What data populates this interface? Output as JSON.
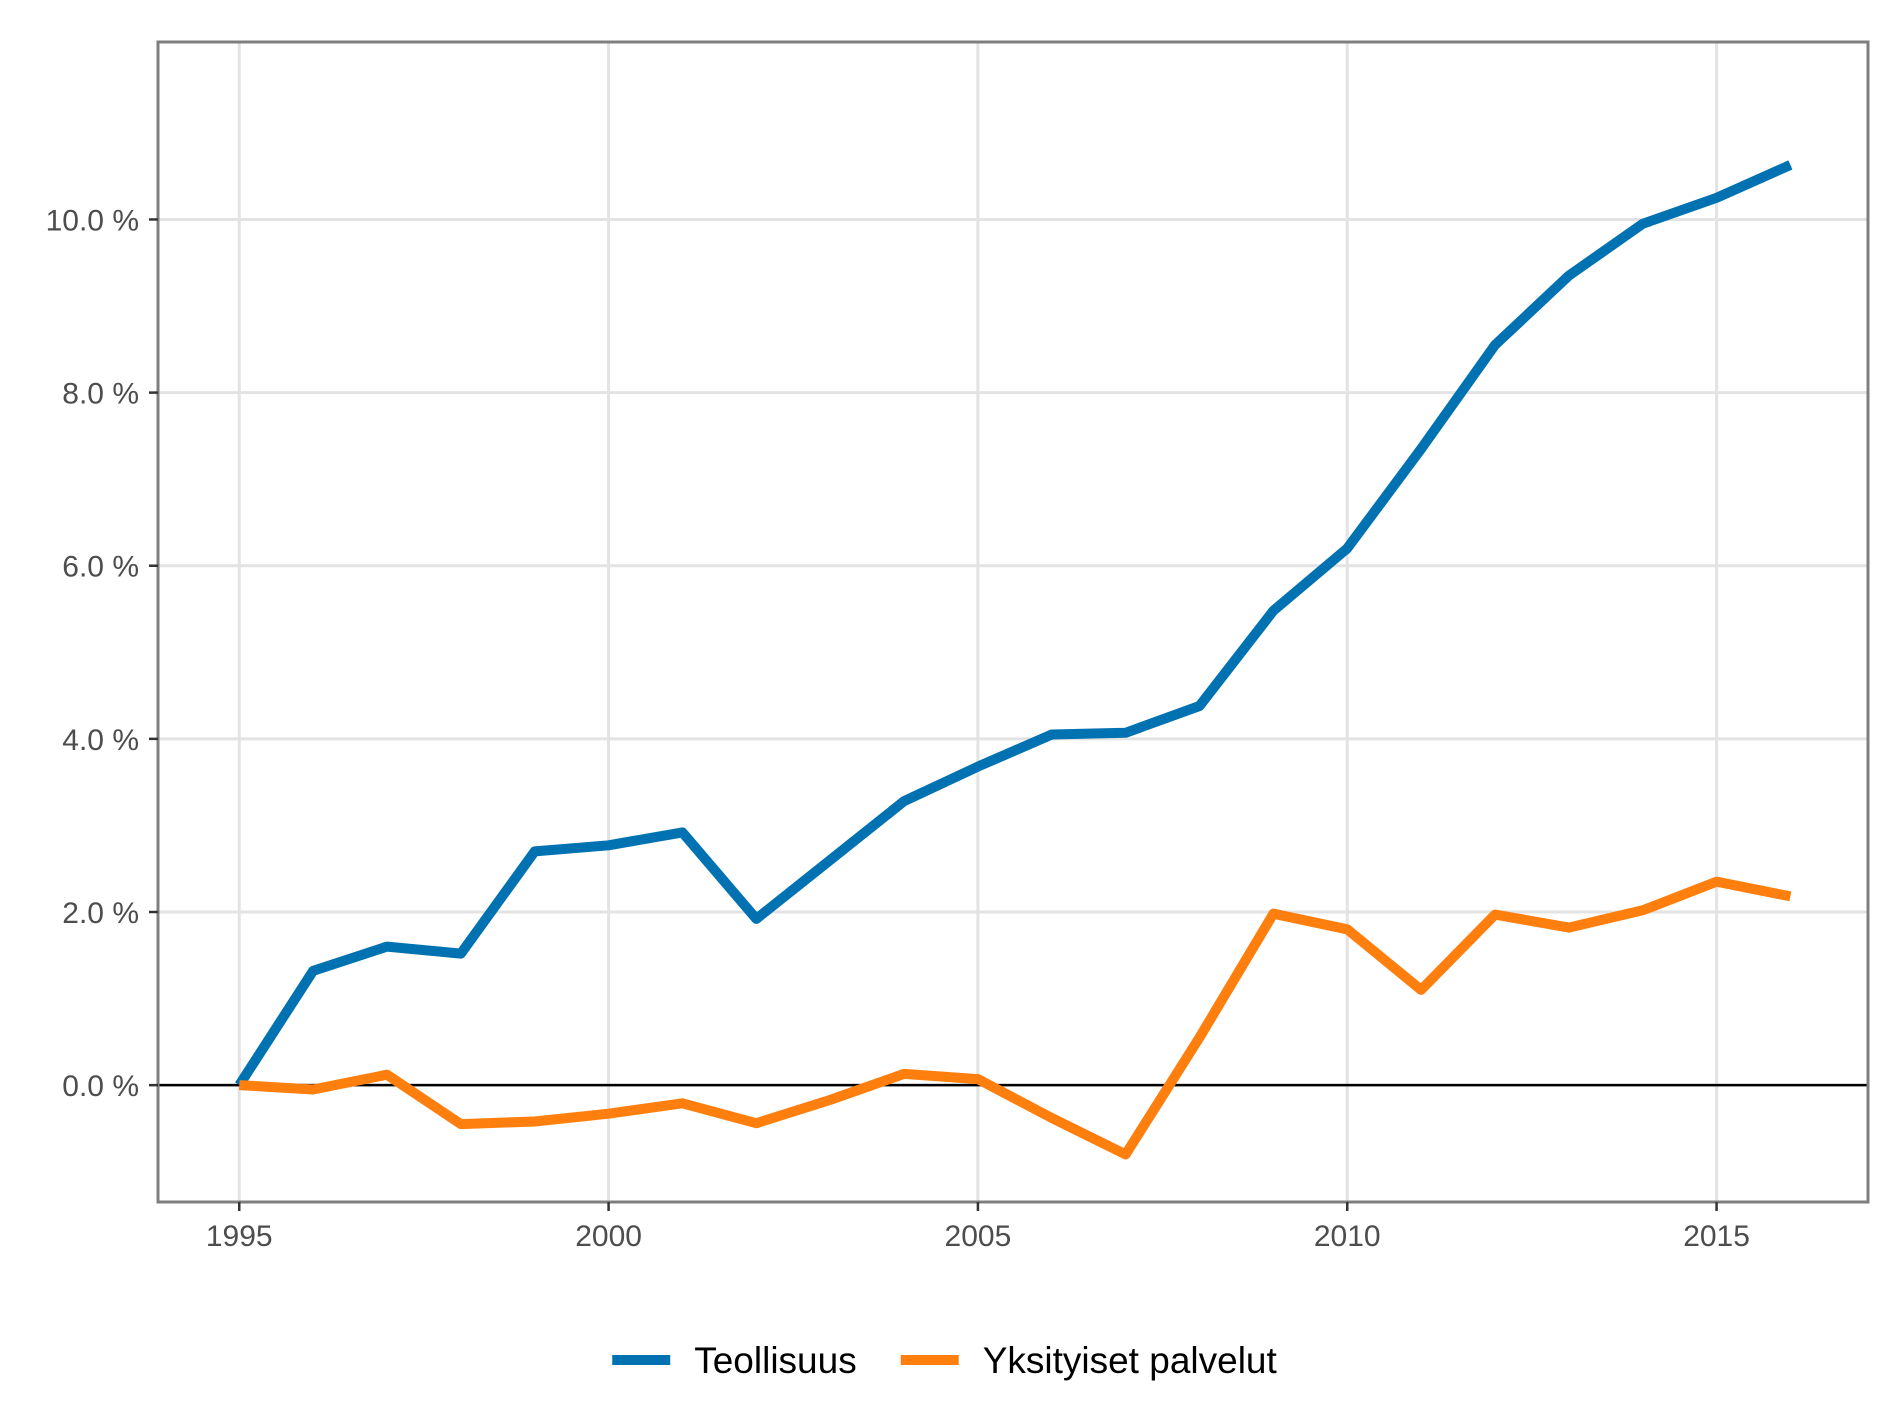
{
  "chart_data": {
    "type": "line",
    "title": "",
    "xlabel": "",
    "ylabel": "",
    "x": [
      1995,
      1996,
      1997,
      1998,
      1999,
      2000,
      2001,
      2002,
      2003,
      2004,
      2005,
      2006,
      2007,
      2008,
      2009,
      2010,
      2011,
      2012,
      2013,
      2014,
      2015,
      2016
    ],
    "series": [
      {
        "name": "Teollisuus",
        "color": "#0072B2",
        "values": [
          0.0,
          1.32,
          1.6,
          1.52,
          2.7,
          2.77,
          2.92,
          1.92,
          2.6,
          3.28,
          3.68,
          4.05,
          4.07,
          4.38,
          5.48,
          6.2,
          7.35,
          8.55,
          9.35,
          9.95,
          10.25,
          10.63
        ]
      },
      {
        "name": "Yksityiset palvelut",
        "color": "#FF7F0E",
        "values": [
          0.0,
          -0.05,
          0.12,
          -0.45,
          -0.42,
          -0.33,
          -0.21,
          -0.44,
          -0.17,
          0.13,
          0.07,
          -0.38,
          -0.8,
          0.55,
          1.98,
          1.8,
          1.1,
          1.97,
          1.82,
          2.02,
          2.35,
          2.18
        ]
      }
    ],
    "xlim": [
      1993.9,
      2017.05
    ],
    "ylim": [
      -1.35,
      12.05
    ],
    "x_ticks": [
      1995,
      2000,
      2005,
      2010,
      2015
    ],
    "x_tick_labels": [
      "1995",
      "2000",
      "2005",
      "2010",
      "2015"
    ],
    "y_ticks": [
      0,
      2,
      4,
      6,
      8,
      10
    ],
    "y_tick_labels": [
      "0.0 %",
      "2.0 %",
      "4.0 %",
      "6.0 %",
      "8.0 %",
      "10.0 %"
    ],
    "reference_line_y": 0,
    "grid": true,
    "legend_position": "bottom"
  }
}
